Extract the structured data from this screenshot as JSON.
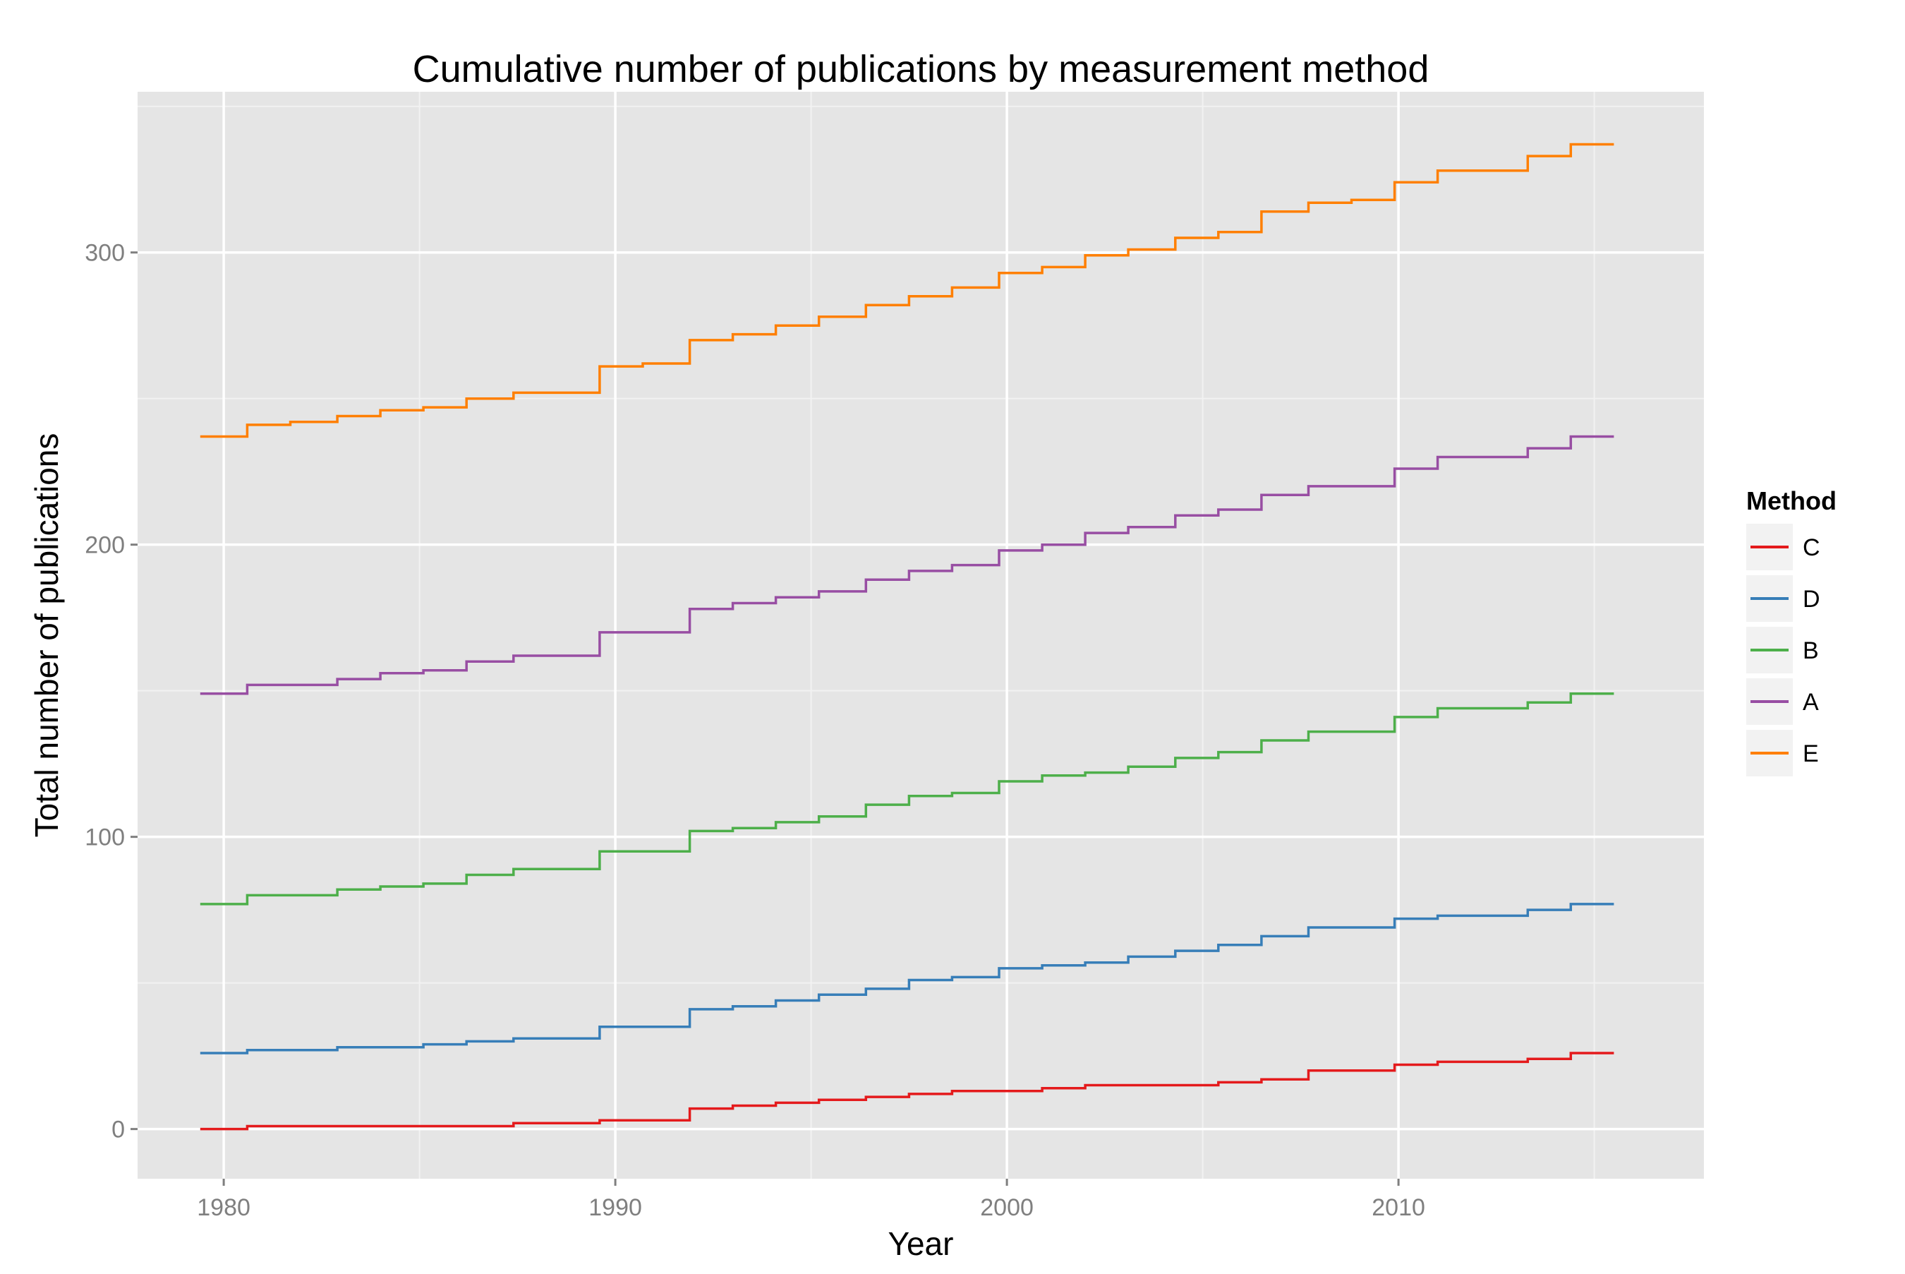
{
  "chart_data": {
    "type": "line",
    "step": true,
    "title": "Cumulative number of publications by measurement method",
    "xlabel": "Year",
    "ylabel": "Total number of publications",
    "xlim": [
      1977.8,
      2017.8
    ],
    "ylim": [
      -17,
      355
    ],
    "x_ticks": [
      1980,
      1990,
      2000,
      2010
    ],
    "y_ticks": [
      0,
      100,
      200,
      300
    ],
    "grid": true,
    "legend": {
      "title": "Method",
      "position": "right"
    },
    "x": [
      1979.4,
      1980.6,
      1981.7,
      1982.9,
      1984.0,
      1985.1,
      1986.2,
      1987.4,
      1988.5,
      1989.6,
      1990.7,
      1991.9,
      1993.0,
      1994.1,
      1995.2,
      1996.4,
      1997.5,
      1998.6,
      1999.8,
      2000.9,
      2002.0,
      2003.1,
      2004.3,
      2005.4,
      2006.5,
      2007.7,
      2008.8,
      2009.9,
      2011.0,
      2012.2,
      2013.3,
      2014.4,
      2015.5
    ],
    "series": [
      {
        "name": "C",
        "color": "#e41a1c",
        "values": [
          0,
          1,
          1,
          1,
          1,
          1,
          1,
          2,
          2,
          3,
          3,
          7,
          8,
          9,
          10,
          11,
          12,
          13,
          13,
          14,
          15,
          15,
          15,
          16,
          17,
          20,
          20,
          22,
          23,
          23,
          24,
          26,
          26
        ]
      },
      {
        "name": "D",
        "color": "#377eb8",
        "values": [
          26,
          27,
          27,
          28,
          28,
          29,
          30,
          31,
          31,
          35,
          35,
          41,
          42,
          44,
          46,
          48,
          51,
          52,
          55,
          56,
          57,
          59,
          61,
          63,
          66,
          69,
          69,
          72,
          73,
          73,
          75,
          77,
          77
        ]
      },
      {
        "name": "B",
        "color": "#4daf4a",
        "values": [
          77,
          80,
          80,
          82,
          83,
          84,
          87,
          89,
          89,
          95,
          95,
          102,
          103,
          105,
          107,
          111,
          114,
          115,
          119,
          121,
          122,
          124,
          127,
          129,
          133,
          136,
          136,
          141,
          144,
          144,
          146,
          149,
          149
        ]
      },
      {
        "name": "A",
        "color": "#984ea3",
        "values": [
          149,
          152,
          152,
          154,
          156,
          157,
          160,
          162,
          162,
          170,
          170,
          178,
          180,
          182,
          184,
          188,
          191,
          193,
          198,
          200,
          204,
          206,
          210,
          212,
          217,
          220,
          220,
          226,
          230,
          230,
          233,
          237,
          237
        ]
      },
      {
        "name": "E",
        "color": "#ff7f00",
        "values": [
          237,
          241,
          242,
          244,
          246,
          247,
          250,
          252,
          252,
          261,
          262,
          270,
          272,
          275,
          278,
          282,
          285,
          288,
          293,
          295,
          299,
          301,
          305,
          307,
          314,
          317,
          318,
          324,
          328,
          328,
          333,
          337,
          337
        ]
      }
    ]
  }
}
